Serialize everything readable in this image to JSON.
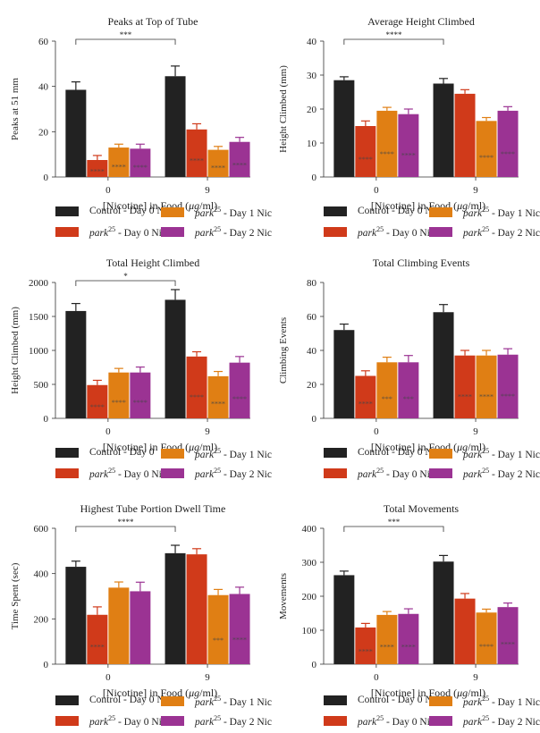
{
  "colors": {
    "control": "#222222",
    "park_day0": "#d03a1a",
    "park_day1": "#e07f14",
    "park_day2": "#9b3393"
  },
  "legend_labels": {
    "control_day0_nic": "Control - Day 0 Nic",
    "control_day0": "Control - Day 0",
    "park_prefix": "park",
    "park_sup": "25",
    "day0_suffix": " - Day 0 Nic",
    "day1_suffix": " - Day 1 Nic",
    "day2_suffix": " - Day 2 Nic"
  },
  "chart_data": [
    {
      "type": "bar",
      "title": "Peaks at Top of Tube",
      "xlabel_pre": "[Nicotine] in Food (",
      "xlabel_unit": "μg",
      "xlabel_post": "/ml)",
      "ylabel": "Peaks at 51 mm",
      "ylim": [
        0,
        60
      ],
      "yticks": [
        "0",
        "20",
        "40",
        "60"
      ],
      "categories": [
        "0",
        "9"
      ],
      "control_legend": "Control - Day 0 Nic",
      "series": [
        {
          "values": [
            38.5,
            44.5
          ],
          "errors": [
            3.5,
            4.5
          ]
        },
        {
          "values": [
            7.5,
            21
          ],
          "errors": [
            2,
            2.5
          ]
        },
        {
          "values": [
            13,
            12
          ],
          "errors": [
            1.5,
            1.5
          ]
        },
        {
          "values": [
            12.5,
            15.5
          ],
          "errors": [
            2,
            2
          ]
        }
      ],
      "annotations": [
        [
          "",
          "****",
          "****",
          "****"
        ],
        [
          "",
          "****",
          "****",
          "****"
        ]
      ],
      "bracket": "***"
    },
    {
      "type": "bar",
      "title": "Average Height Climbed",
      "xlabel_pre": "[Nicotine] in Food (",
      "xlabel_unit": "μg",
      "xlabel_post": "/ml)",
      "ylabel": "Height Climbed (mm)",
      "ylim": [
        0,
        40
      ],
      "yticks": [
        "0",
        "10",
        "20",
        "30",
        "40"
      ],
      "categories": [
        "0",
        "9"
      ],
      "control_legend": "Control - Day 0 Nic",
      "series": [
        {
          "values": [
            28.5,
            27.5
          ],
          "errors": [
            1,
            1.5
          ]
        },
        {
          "values": [
            15,
            24.5
          ],
          "errors": [
            1.5,
            1.2
          ]
        },
        {
          "values": [
            19.5,
            16.5
          ],
          "errors": [
            1,
            1
          ]
        },
        {
          "values": [
            18.5,
            19.5
          ],
          "errors": [
            1.5,
            1.2
          ]
        }
      ],
      "annotations": [
        [
          "",
          "****",
          "****",
          "****"
        ],
        [
          "",
          "",
          "****",
          "****"
        ]
      ],
      "bracket": "****"
    },
    {
      "type": "bar",
      "title": "Total Height Climbed",
      "xlabel_pre": "[Nicotine] in Food (",
      "xlabel_unit": "μg",
      "xlabel_post": "/ml)",
      "ylabel": "Height Climbed (mm)",
      "ylim": [
        0,
        2000
      ],
      "yticks": [
        "0",
        "500",
        "1000",
        "1500",
        "2000"
      ],
      "categories": [
        "0",
        "9"
      ],
      "control_legend": "Control - Day 0",
      "series": [
        {
          "values": [
            1580,
            1745
          ],
          "errors": [
            110,
            150
          ]
        },
        {
          "values": [
            490,
            910
          ],
          "errors": [
            70,
            70
          ]
        },
        {
          "values": [
            675,
            620
          ],
          "errors": [
            60,
            70
          ]
        },
        {
          "values": [
            675,
            820
          ],
          "errors": [
            80,
            90
          ]
        }
      ],
      "annotations": [
        [
          "",
          "****",
          "****",
          "****"
        ],
        [
          "",
          "****",
          "****",
          "****"
        ]
      ],
      "bracket": "*"
    },
    {
      "type": "bar",
      "title": "Total Climbing Events",
      "xlabel_pre": "[Nicotine] in Food (",
      "xlabel_unit": "μg",
      "xlabel_post": "/ml)",
      "ylabel": "Climbing Events",
      "ylim": [
        0,
        80
      ],
      "yticks": [
        "0",
        "20",
        "40",
        "60",
        "80"
      ],
      "categories": [
        "0",
        "9"
      ],
      "control_legend": "Control - Day 0 Nic",
      "series": [
        {
          "values": [
            52,
            62.5
          ],
          "errors": [
            3.5,
            4.5
          ]
        },
        {
          "values": [
            25,
            37
          ],
          "errors": [
            3,
            3
          ]
        },
        {
          "values": [
            33,
            37
          ],
          "errors": [
            3,
            3
          ]
        },
        {
          "values": [
            33,
            37.5
          ],
          "errors": [
            4,
            3.5
          ]
        }
      ],
      "annotations": [
        [
          "",
          "****",
          "***",
          "***"
        ],
        [
          "",
          "****",
          "****",
          "****"
        ]
      ],
      "bracket": ""
    },
    {
      "type": "bar",
      "title": "Highest Tube Portion Dwell Time",
      "xlabel_pre": "[Nicotine] in Food (",
      "xlabel_unit": "μg",
      "xlabel_post": "/ml)",
      "ylabel": "Time Spent (sec)",
      "ylim": [
        0,
        600
      ],
      "yticks": [
        "0",
        "200",
        "400",
        "600"
      ],
      "categories": [
        "0",
        "9"
      ],
      "control_legend": "Control - Day 0 Nic",
      "series": [
        {
          "values": [
            430,
            490
          ],
          "errors": [
            25,
            35
          ]
        },
        {
          "values": [
            218,
            485
          ],
          "errors": [
            35,
            25
          ]
        },
        {
          "values": [
            338,
            305
          ],
          "errors": [
            25,
            25
          ]
        },
        {
          "values": [
            322,
            310
          ],
          "errors": [
            40,
            30
          ]
        }
      ],
      "annotations": [
        [
          "",
          "****",
          "",
          ""
        ],
        [
          "",
          "",
          "***",
          "****"
        ]
      ],
      "bracket": "****"
    },
    {
      "type": "bar",
      "title": "Total Movements",
      "xlabel_pre": "[Nicotine] in Food (",
      "xlabel_unit": "μg",
      "xlabel_post": "/ml)",
      "ylabel": "Movements",
      "ylim": [
        0,
        400
      ],
      "yticks": [
        "0",
        "100",
        "200",
        "300",
        "400"
      ],
      "categories": [
        "0",
        "9"
      ],
      "control_legend": "Control - Day 0 Nic",
      "series": [
        {
          "values": [
            262,
            302
          ],
          "errors": [
            12,
            18
          ]
        },
        {
          "values": [
            108,
            193
          ],
          "errors": [
            12,
            15
          ]
        },
        {
          "values": [
            145,
            152
          ],
          "errors": [
            10,
            10
          ]
        },
        {
          "values": [
            148,
            168
          ],
          "errors": [
            15,
            12
          ]
        }
      ],
      "annotations": [
        [
          "",
          "****",
          "****",
          "****"
        ],
        [
          "",
          "",
          "****",
          "****"
        ]
      ],
      "bracket": "***"
    }
  ]
}
